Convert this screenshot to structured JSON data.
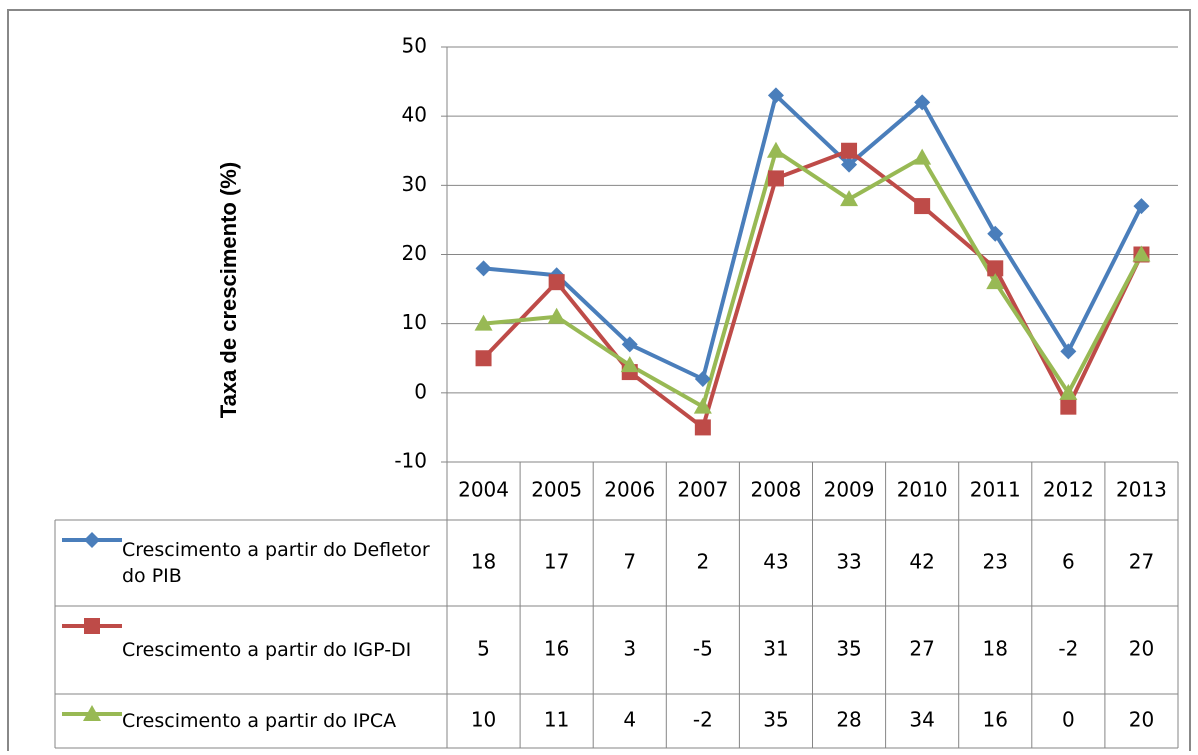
{
  "chart_data": {
    "type": "line",
    "y_label": "Taxa de crescimento (%)",
    "categories": [
      "2004",
      "2005",
      "2006",
      "2007",
      "2008",
      "2009",
      "2010",
      "2011",
      "2012",
      "2013"
    ],
    "series": [
      {
        "name": "Crescimento a partir do Defletor do PIB",
        "color": "#4a7ebb",
        "marker": "diamond",
        "values": [
          18,
          17,
          7,
          2,
          43,
          33,
          42,
          23,
          6,
          27
        ]
      },
      {
        "name": "Crescimento a partir do IGP-DI",
        "color": "#be4b48",
        "marker": "square",
        "values": [
          5,
          16,
          3,
          -5,
          31,
          35,
          27,
          18,
          -2,
          20
        ]
      },
      {
        "name": "Crescimento a partir do IPCA",
        "color": "#98b954",
        "marker": "triangle",
        "values": [
          10,
          11,
          4,
          -2,
          35,
          28,
          34,
          16,
          0,
          20
        ]
      }
    ],
    "ylim": [
      -10,
      50
    ],
    "yticks": [
      -10,
      0,
      10,
      20,
      30,
      40,
      50
    ],
    "grid": true,
    "data_table": true
  }
}
